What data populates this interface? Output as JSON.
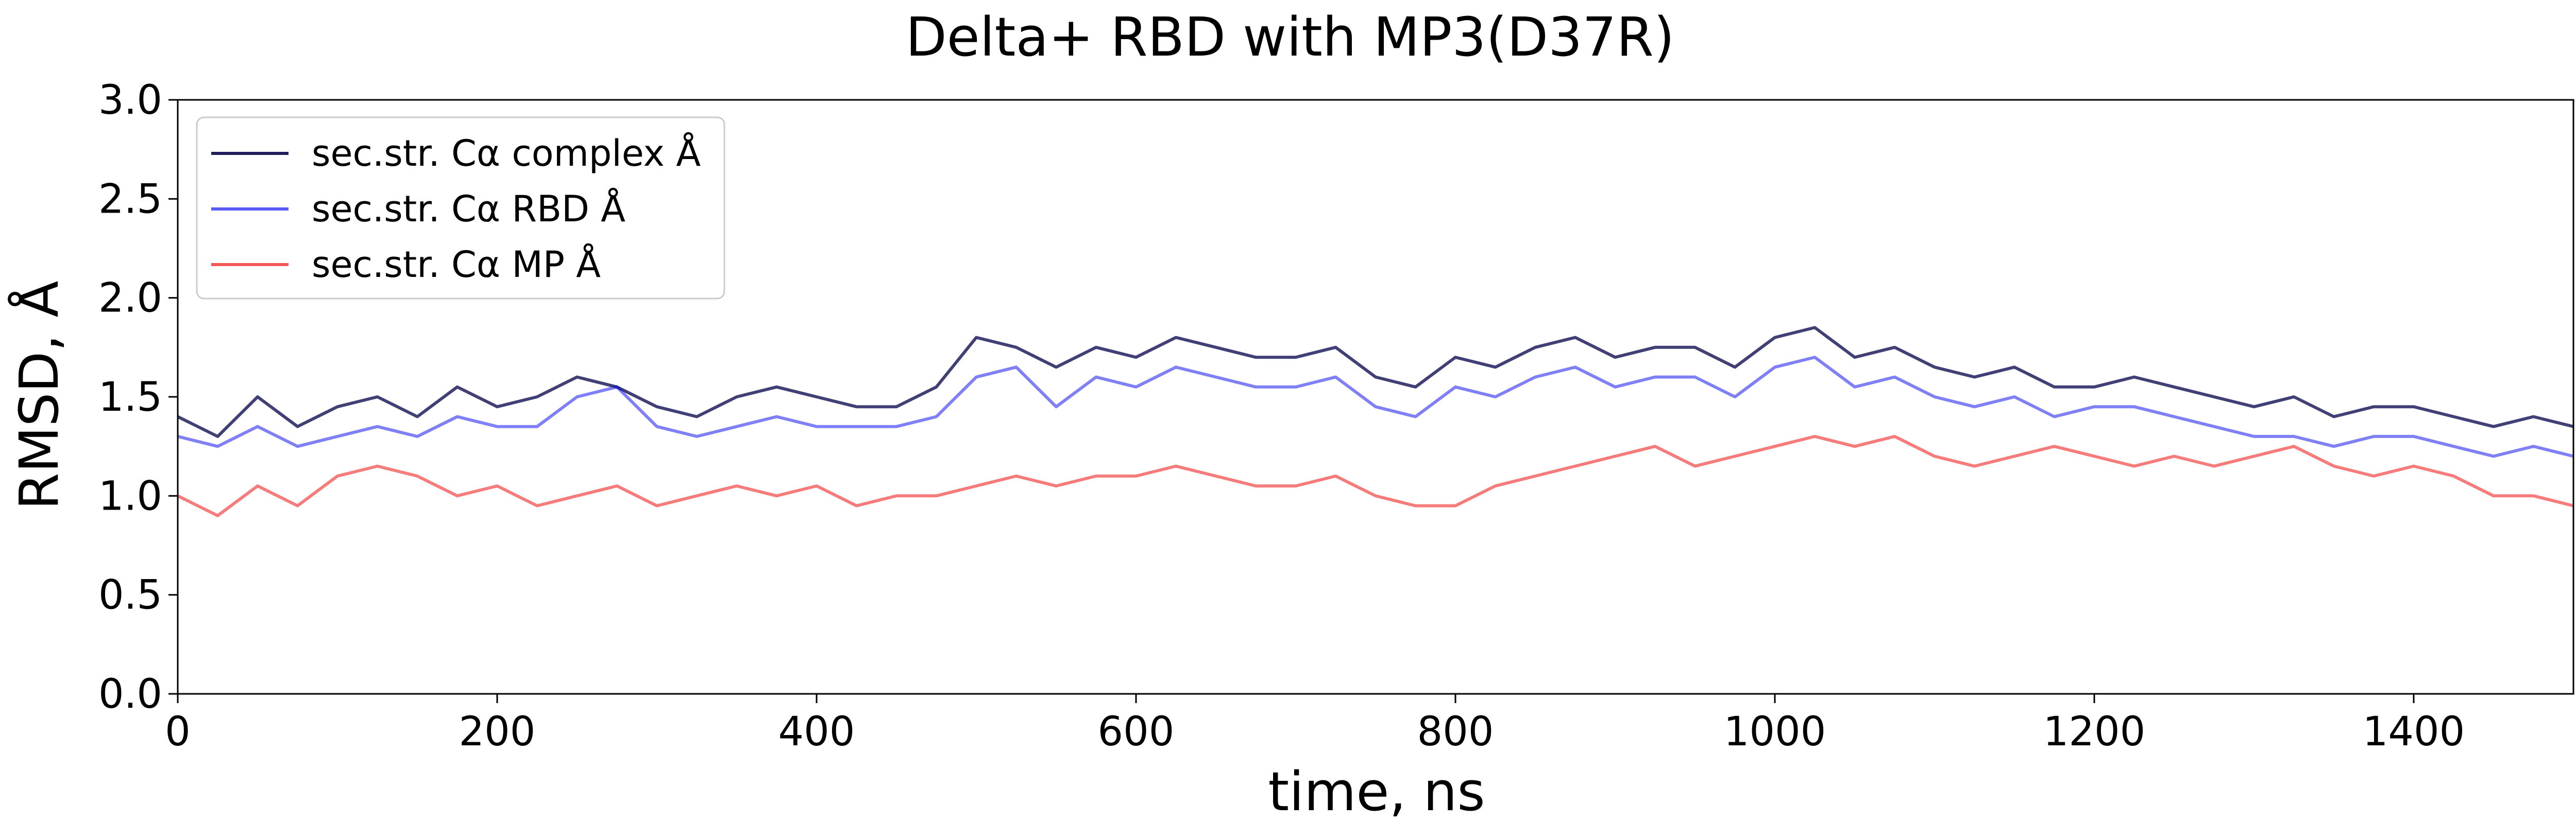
{
  "chart_data": {
    "type": "line",
    "title": "Delta+ RBD with MP3(D37R)",
    "xlabel": "time, ns",
    "ylabel": "RMSD, Å",
    "xlim": [
      0,
      1500
    ],
    "ylim": [
      0,
      3.0
    ],
    "x_ticks": [
      0,
      200,
      400,
      600,
      800,
      1000,
      1200,
      1400
    ],
    "y_ticks": [
      0.0,
      0.5,
      1.0,
      1.5,
      2.0,
      2.5,
      3.0
    ],
    "x_tick_labels": [
      "0",
      "200",
      "400",
      "600",
      "800",
      "1000",
      "1200",
      "1400"
    ],
    "y_tick_labels": [
      "0.0",
      "0.5",
      "1.0",
      "1.5",
      "2.0",
      "2.5",
      "3.0"
    ],
    "grid": false,
    "legend_position": "top-left",
    "x": [
      0,
      25,
      50,
      75,
      100,
      125,
      150,
      175,
      200,
      225,
      250,
      275,
      300,
      325,
      350,
      375,
      400,
      425,
      450,
      475,
      500,
      525,
      550,
      575,
      600,
      625,
      650,
      675,
      700,
      725,
      750,
      775,
      800,
      825,
      850,
      875,
      900,
      925,
      950,
      975,
      1000,
      1025,
      1050,
      1075,
      1100,
      1125,
      1150,
      1175,
      1200,
      1225,
      1250,
      1275,
      1300,
      1325,
      1350,
      1375,
      1400,
      1425,
      1450,
      1475,
      1500
    ],
    "series": [
      {
        "name": "sec.str. Cα complex Å",
        "color": "#1f1f5e",
        "opacity": 0.85,
        "values": [
          1.4,
          1.3,
          1.5,
          1.35,
          1.45,
          1.5,
          1.4,
          1.55,
          1.45,
          1.5,
          1.6,
          1.55,
          1.45,
          1.4,
          1.5,
          1.55,
          1.5,
          1.45,
          1.45,
          1.55,
          1.8,
          1.75,
          1.65,
          1.75,
          1.7,
          1.8,
          1.75,
          1.7,
          1.7,
          1.75,
          1.6,
          1.55,
          1.7,
          1.65,
          1.75,
          1.8,
          1.7,
          1.75,
          1.75,
          1.65,
          1.8,
          1.85,
          1.7,
          1.75,
          1.65,
          1.6,
          1.65,
          1.55,
          1.55,
          1.6,
          1.55,
          1.5,
          1.45,
          1.5,
          1.4,
          1.45,
          1.45,
          1.4,
          1.35,
          1.4,
          1.35
        ]
      },
      {
        "name": "sec.str. Cα RBD Å",
        "color": "#0000ee",
        "opacity": 0.5,
        "values": [
          1.3,
          1.25,
          1.35,
          1.25,
          1.3,
          1.35,
          1.3,
          1.4,
          1.35,
          1.35,
          1.5,
          1.55,
          1.35,
          1.3,
          1.35,
          1.4,
          1.35,
          1.35,
          1.35,
          1.4,
          1.6,
          1.65,
          1.45,
          1.6,
          1.55,
          1.65,
          1.6,
          1.55,
          1.55,
          1.6,
          1.45,
          1.4,
          1.55,
          1.5,
          1.6,
          1.65,
          1.55,
          1.6,
          1.6,
          1.5,
          1.65,
          1.7,
          1.55,
          1.6,
          1.5,
          1.45,
          1.5,
          1.4,
          1.45,
          1.45,
          1.4,
          1.35,
          1.3,
          1.3,
          1.25,
          1.3,
          1.3,
          1.25,
          1.2,
          1.25,
          1.2
        ]
      },
      {
        "name": "sec.str. Cα MP Å",
        "color": "#ee1111",
        "opacity": 0.55,
        "values": [
          1.0,
          0.9,
          1.05,
          0.95,
          1.1,
          1.15,
          1.1,
          1.0,
          1.05,
          0.95,
          1.0,
          1.05,
          0.95,
          1.0,
          1.05,
          1.0,
          1.05,
          0.95,
          1.0,
          1.0,
          1.05,
          1.1,
          1.05,
          1.1,
          1.1,
          1.15,
          1.1,
          1.05,
          1.05,
          1.1,
          1.0,
          0.95,
          0.95,
          1.05,
          1.1,
          1.15,
          1.2,
          1.25,
          1.15,
          1.2,
          1.25,
          1.3,
          1.25,
          1.3,
          1.2,
          1.15,
          1.2,
          1.25,
          1.2,
          1.15,
          1.2,
          1.15,
          1.2,
          1.25,
          1.15,
          1.1,
          1.15,
          1.1,
          1.0,
          1.0,
          0.95
        ]
      }
    ]
  }
}
